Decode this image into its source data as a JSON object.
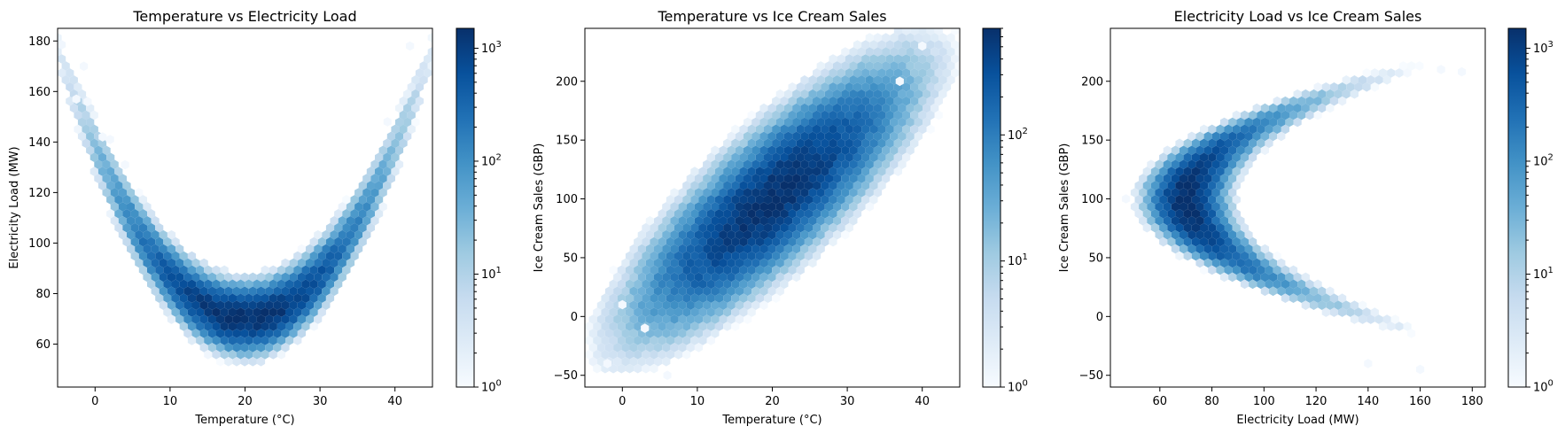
{
  "chart_data": [
    {
      "type": "hexbin",
      "title": "Temperature vs Electricity Load",
      "xlabel": "Temperature (°C)",
      "ylabel": "Electricity Load (MW)",
      "xlim": [
        -5,
        45
      ],
      "ylim": [
        43,
        185
      ],
      "xticks": [
        0,
        10,
        20,
        30,
        40
      ],
      "yticks": [
        60,
        80,
        100,
        120,
        140,
        160,
        180
      ],
      "colormap": "Blues",
      "color_scale": "log",
      "colorbar": {
        "ticks": [
          "10^0",
          "10^1",
          "10^2",
          "10^3"
        ],
        "range": [
          1,
          1500
        ]
      },
      "model": {
        "kind": "parabola",
        "x_center": 20,
        "y_min": 70,
        "curvature": 0.17,
        "x_sigma": 7,
        "y_sigma": 5,
        "peak_count": 1500
      },
      "background_points": [
        [
          -1.5,
          170
        ],
        [
          -2.5,
          157
        ],
        [
          -1,
          156
        ],
        [
          1,
          142
        ],
        [
          2,
          141
        ],
        [
          4,
          131
        ],
        [
          42,
          178
        ],
        [
          39,
          148
        ]
      ]
    },
    {
      "type": "hexbin",
      "title": "Temperature vs Ice Cream Sales",
      "xlabel": "Temperature (°C)",
      "ylabel": "Ice Cream Sales (GBP)",
      "xlim": [
        -5,
        45
      ],
      "ylim": [
        -60,
        245
      ],
      "xticks": [
        0,
        10,
        20,
        30,
        40
      ],
      "yticks": [
        -50,
        0,
        50,
        100,
        150,
        200
      ],
      "colormap": "Blues",
      "color_scale": "log",
      "colorbar": {
        "ticks": [
          "10^0",
          "10^1",
          "10^2"
        ],
        "range": [
          1,
          700
        ]
      },
      "model": {
        "kind": "linear",
        "x_center": 20,
        "y_center": 100,
        "slope": 5,
        "x_sigma": 7,
        "y_sigma": 24,
        "peak_count": 700
      },
      "background_points": [
        [
          -2,
          -40
        ],
        [
          0,
          10
        ],
        [
          3,
          -10
        ],
        [
          40,
          230
        ],
        [
          37,
          200
        ],
        [
          6,
          -50
        ]
      ]
    },
    {
      "type": "hexbin",
      "title": "Electricity Load vs Ice Cream Sales",
      "xlabel": "Electricity Load (MW)",
      "ylabel": "Ice Cream Sales (GBP)",
      "xlim": [
        41,
        185
      ],
      "ylim": [
        -60,
        245
      ],
      "xticks": [
        60,
        80,
        100,
        120,
        140,
        160,
        180
      ],
      "yticks": [
        -50,
        0,
        50,
        100,
        150,
        200
      ],
      "colormap": "Blues",
      "color_scale": "log",
      "colorbar": {
        "ticks": [
          "10^0",
          "10^1",
          "10^2",
          "10^3"
        ],
        "range": [
          1,
          1500
        ]
      },
      "model": {
        "kind": "arc",
        "x_center": 70,
        "y_center": 100,
        "dx_scale": 25,
        "dy_scale": 7,
        "peak_count": 1500
      },
      "background_points": [
        [
          176,
          208
        ],
        [
          160,
          -45
        ],
        [
          140,
          -40
        ],
        [
          47,
          100
        ],
        [
          168,
          210
        ]
      ]
    }
  ]
}
